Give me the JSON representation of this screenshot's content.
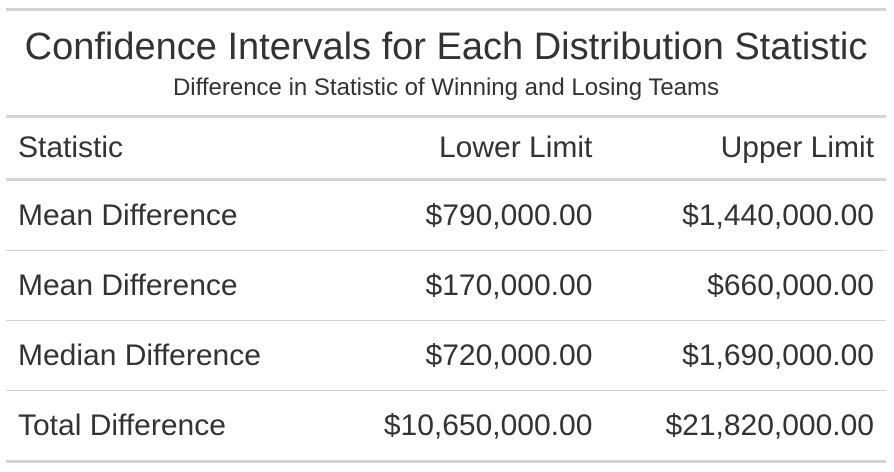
{
  "chart_data": {
    "type": "table",
    "title": "Confidence Intervals for Each Distribution Statistic",
    "subtitle": "Difference in Statistic of Winning and Losing Teams",
    "columns": [
      "Statistic",
      "Lower Limit",
      "Upper Limit"
    ],
    "rows": [
      {
        "statistic": "Mean Difference",
        "lower": "$790,000.00",
        "upper": "$1,440,000.00"
      },
      {
        "statistic": "Mean Difference",
        "lower": "$170,000.00",
        "upper": "$660,000.00"
      },
      {
        "statistic": "Median Difference",
        "lower": "$720,000.00",
        "upper": "$1,690,000.00"
      },
      {
        "statistic": "Total Difference",
        "lower": "$10,650,000.00",
        "upper": "$21,820,000.00"
      }
    ]
  },
  "colors": {
    "text": "#333333",
    "rule": "#d3d3d3",
    "background": "#ffffff"
  }
}
